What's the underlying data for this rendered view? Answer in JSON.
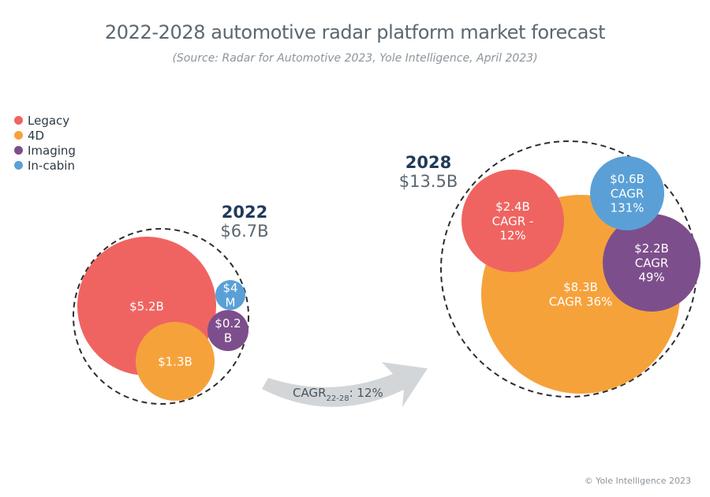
{
  "title": "2022-2028 automotive radar platform market forecast",
  "subtitle": "(Source: Radar for Automotive 2023, Yole Intelligence, April 2023)",
  "copyright": "© Yole Intelligence 2023",
  "legend": [
    {
      "name": "Legacy",
      "color": "#ef6461"
    },
    {
      "name": "4D",
      "color": "#f6a23b"
    },
    {
      "name": "Imaging",
      "color": "#7d4e8c"
    },
    {
      "name": "In-cabin",
      "color": "#5aa0d6"
    }
  ],
  "colors": {
    "Legacy": "#ef6461",
    "4D": "#f6a23b",
    "Imaging": "#7d4e8c",
    "In-cabin": "#5aa0d6",
    "dashed_outline": "#2d2d2d",
    "arrow": "#d3d6d8"
  },
  "growth_arrow": {
    "label_main": "CAGR",
    "label_sub": "22-28",
    "label_value": ": 12%"
  },
  "chart_data": {
    "type": "bubble",
    "groups": [
      {
        "year": "2022",
        "total": "$6.7B",
        "total_value_busd": 6.7,
        "segments": [
          {
            "series": "Legacy",
            "value_busd": 5.2,
            "label_lines": [
              "$5.2B"
            ]
          },
          {
            "series": "4D",
            "value_busd": 1.3,
            "label_lines": [
              "$1.3B"
            ]
          },
          {
            "series": "Imaging",
            "value_busd": 0.2,
            "label_lines": [
              "$0.2",
              "B"
            ]
          },
          {
            "series": "In-cabin",
            "value_busd": 0.004,
            "label_lines": [
              "$4",
              "M"
            ]
          }
        ]
      },
      {
        "year": "2028",
        "total": "$13.5B",
        "total_value_busd": 13.5,
        "segments": [
          {
            "series": "4D",
            "value_busd": 8.3,
            "cagr_pct": 36,
            "label_lines": [
              "$8.3B",
              "CAGR 36%"
            ]
          },
          {
            "series": "Legacy",
            "value_busd": 2.4,
            "cagr_pct": -12,
            "label_lines": [
              "$2.4B",
              "CAGR -",
              "12%"
            ]
          },
          {
            "series": "Imaging",
            "value_busd": 2.2,
            "cagr_pct": 49,
            "label_lines": [
              "$2.2B",
              "CAGR",
              "49%"
            ]
          },
          {
            "series": "In-cabin",
            "value_busd": 0.6,
            "cagr_pct": 131,
            "label_lines": [
              "$0.6B",
              "CAGR",
              "131%"
            ]
          }
        ]
      }
    ],
    "overall_cagr_2022_2028_pct": 12
  }
}
